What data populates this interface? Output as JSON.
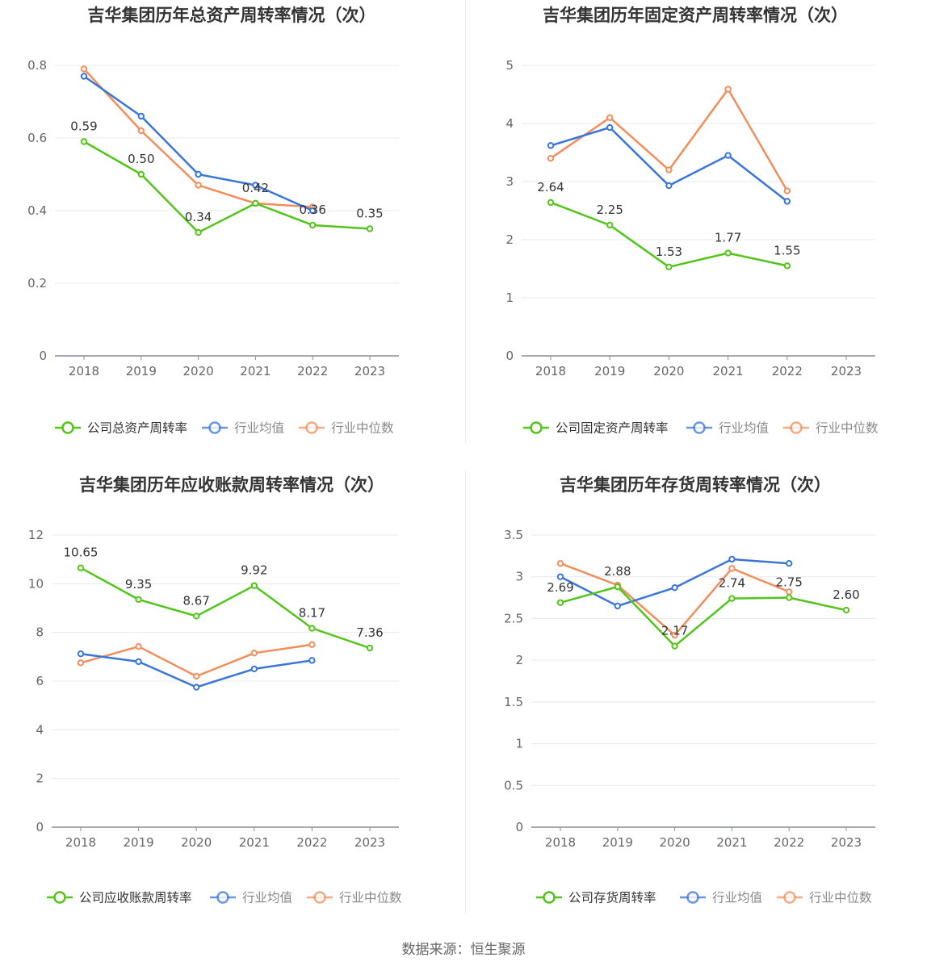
{
  "source": "数据来源：恒生聚源",
  "colors": {
    "company": "#52c41a",
    "avg": "#3a75d9",
    "median": "#f28e5c"
  },
  "chart_data": [
    {
      "type": "line",
      "title": "吉华集团历年总资产周转率情况（次）",
      "categories": [
        "2018",
        "2019",
        "2020",
        "2021",
        "2022",
        "2023"
      ],
      "yticks": [
        "0",
        "0.2",
        "0.4",
        "0.6",
        "0.8"
      ],
      "ylim": [
        0,
        0.8
      ],
      "grid": true,
      "legend_position": "bottom",
      "series": [
        {
          "name": "公司总资产周转率",
          "key": "company",
          "values": [
            0.59,
            0.5,
            0.34,
            0.42,
            0.36,
            0.35
          ],
          "labels": [
            "0.59",
            "0.50",
            "0.34",
            "0.42",
            "0.36",
            "0.35"
          ]
        },
        {
          "name": "行业均值",
          "key": "avg",
          "values": [
            0.77,
            0.66,
            0.5,
            0.47,
            0.4,
            null
          ]
        },
        {
          "name": "行业中位数",
          "key": "median",
          "values": [
            0.79,
            0.62,
            0.47,
            0.42,
            0.41,
            null
          ]
        }
      ]
    },
    {
      "type": "line",
      "title": "吉华集团历年固定资产周转率情况（次）",
      "categories": [
        "2018",
        "2019",
        "2020",
        "2021",
        "2022",
        "2023"
      ],
      "yticks": [
        "0",
        "1",
        "2",
        "3",
        "4",
        "5"
      ],
      "ylim": [
        0,
        5
      ],
      "grid": true,
      "legend_position": "bottom",
      "series": [
        {
          "name": "公司固定资产周转率",
          "key": "company",
          "values": [
            2.64,
            2.25,
            1.53,
            1.77,
            1.55,
            null
          ],
          "labels": [
            "2.64",
            "2.25",
            "1.53",
            "1.77",
            "1.55",
            ""
          ]
        },
        {
          "name": "行业均值",
          "key": "avg",
          "values": [
            3.62,
            3.93,
            2.93,
            3.45,
            2.66,
            null
          ]
        },
        {
          "name": "行业中位数",
          "key": "median",
          "values": [
            3.4,
            4.1,
            3.2,
            4.59,
            2.84,
            null
          ]
        }
      ]
    },
    {
      "type": "line",
      "title": "吉华集团历年应收账款周转率情况（次）",
      "categories": [
        "2018",
        "2019",
        "2020",
        "2021",
        "2022",
        "2023"
      ],
      "yticks": [
        "0",
        "2",
        "4",
        "6",
        "8",
        "10",
        "12"
      ],
      "ylim": [
        0,
        12
      ],
      "grid": true,
      "legend_position": "bottom",
      "series": [
        {
          "name": "公司应收账款周转率",
          "key": "company",
          "values": [
            10.65,
            9.35,
            8.67,
            9.92,
            8.17,
            7.36
          ],
          "labels": [
            "10.65",
            "9.35",
            "8.67",
            "9.92",
            "8.17",
            "7.36"
          ]
        },
        {
          "name": "行业均值",
          "key": "avg",
          "values": [
            7.12,
            6.8,
            5.75,
            6.5,
            6.85,
            null
          ]
        },
        {
          "name": "行业中位数",
          "key": "median",
          "values": [
            6.75,
            7.42,
            6.2,
            7.15,
            7.5,
            null
          ]
        }
      ]
    },
    {
      "type": "line",
      "title": "吉华集团历年存货周转率情况（次）",
      "categories": [
        "2018",
        "2019",
        "2020",
        "2021",
        "2022",
        "2023"
      ],
      "yticks": [
        "0",
        "0.5",
        "1",
        "1.5",
        "2",
        "2.5",
        "3",
        "3.5"
      ],
      "ylim": [
        0,
        3.5
      ],
      "grid": true,
      "legend_position": "bottom",
      "series": [
        {
          "name": "公司存货周转率",
          "key": "company",
          "values": [
            2.69,
            2.88,
            2.17,
            2.74,
            2.75,
            2.6
          ],
          "labels": [
            "2.69",
            "2.88",
            "2.17",
            "2.74",
            "2.75",
            "2.60"
          ]
        },
        {
          "name": "行业均值",
          "key": "avg",
          "values": [
            3.0,
            2.65,
            2.87,
            3.21,
            3.16,
            null
          ]
        },
        {
          "name": "行业中位数",
          "key": "median",
          "values": [
            3.16,
            2.9,
            2.3,
            3.1,
            2.82,
            null
          ]
        }
      ]
    }
  ]
}
